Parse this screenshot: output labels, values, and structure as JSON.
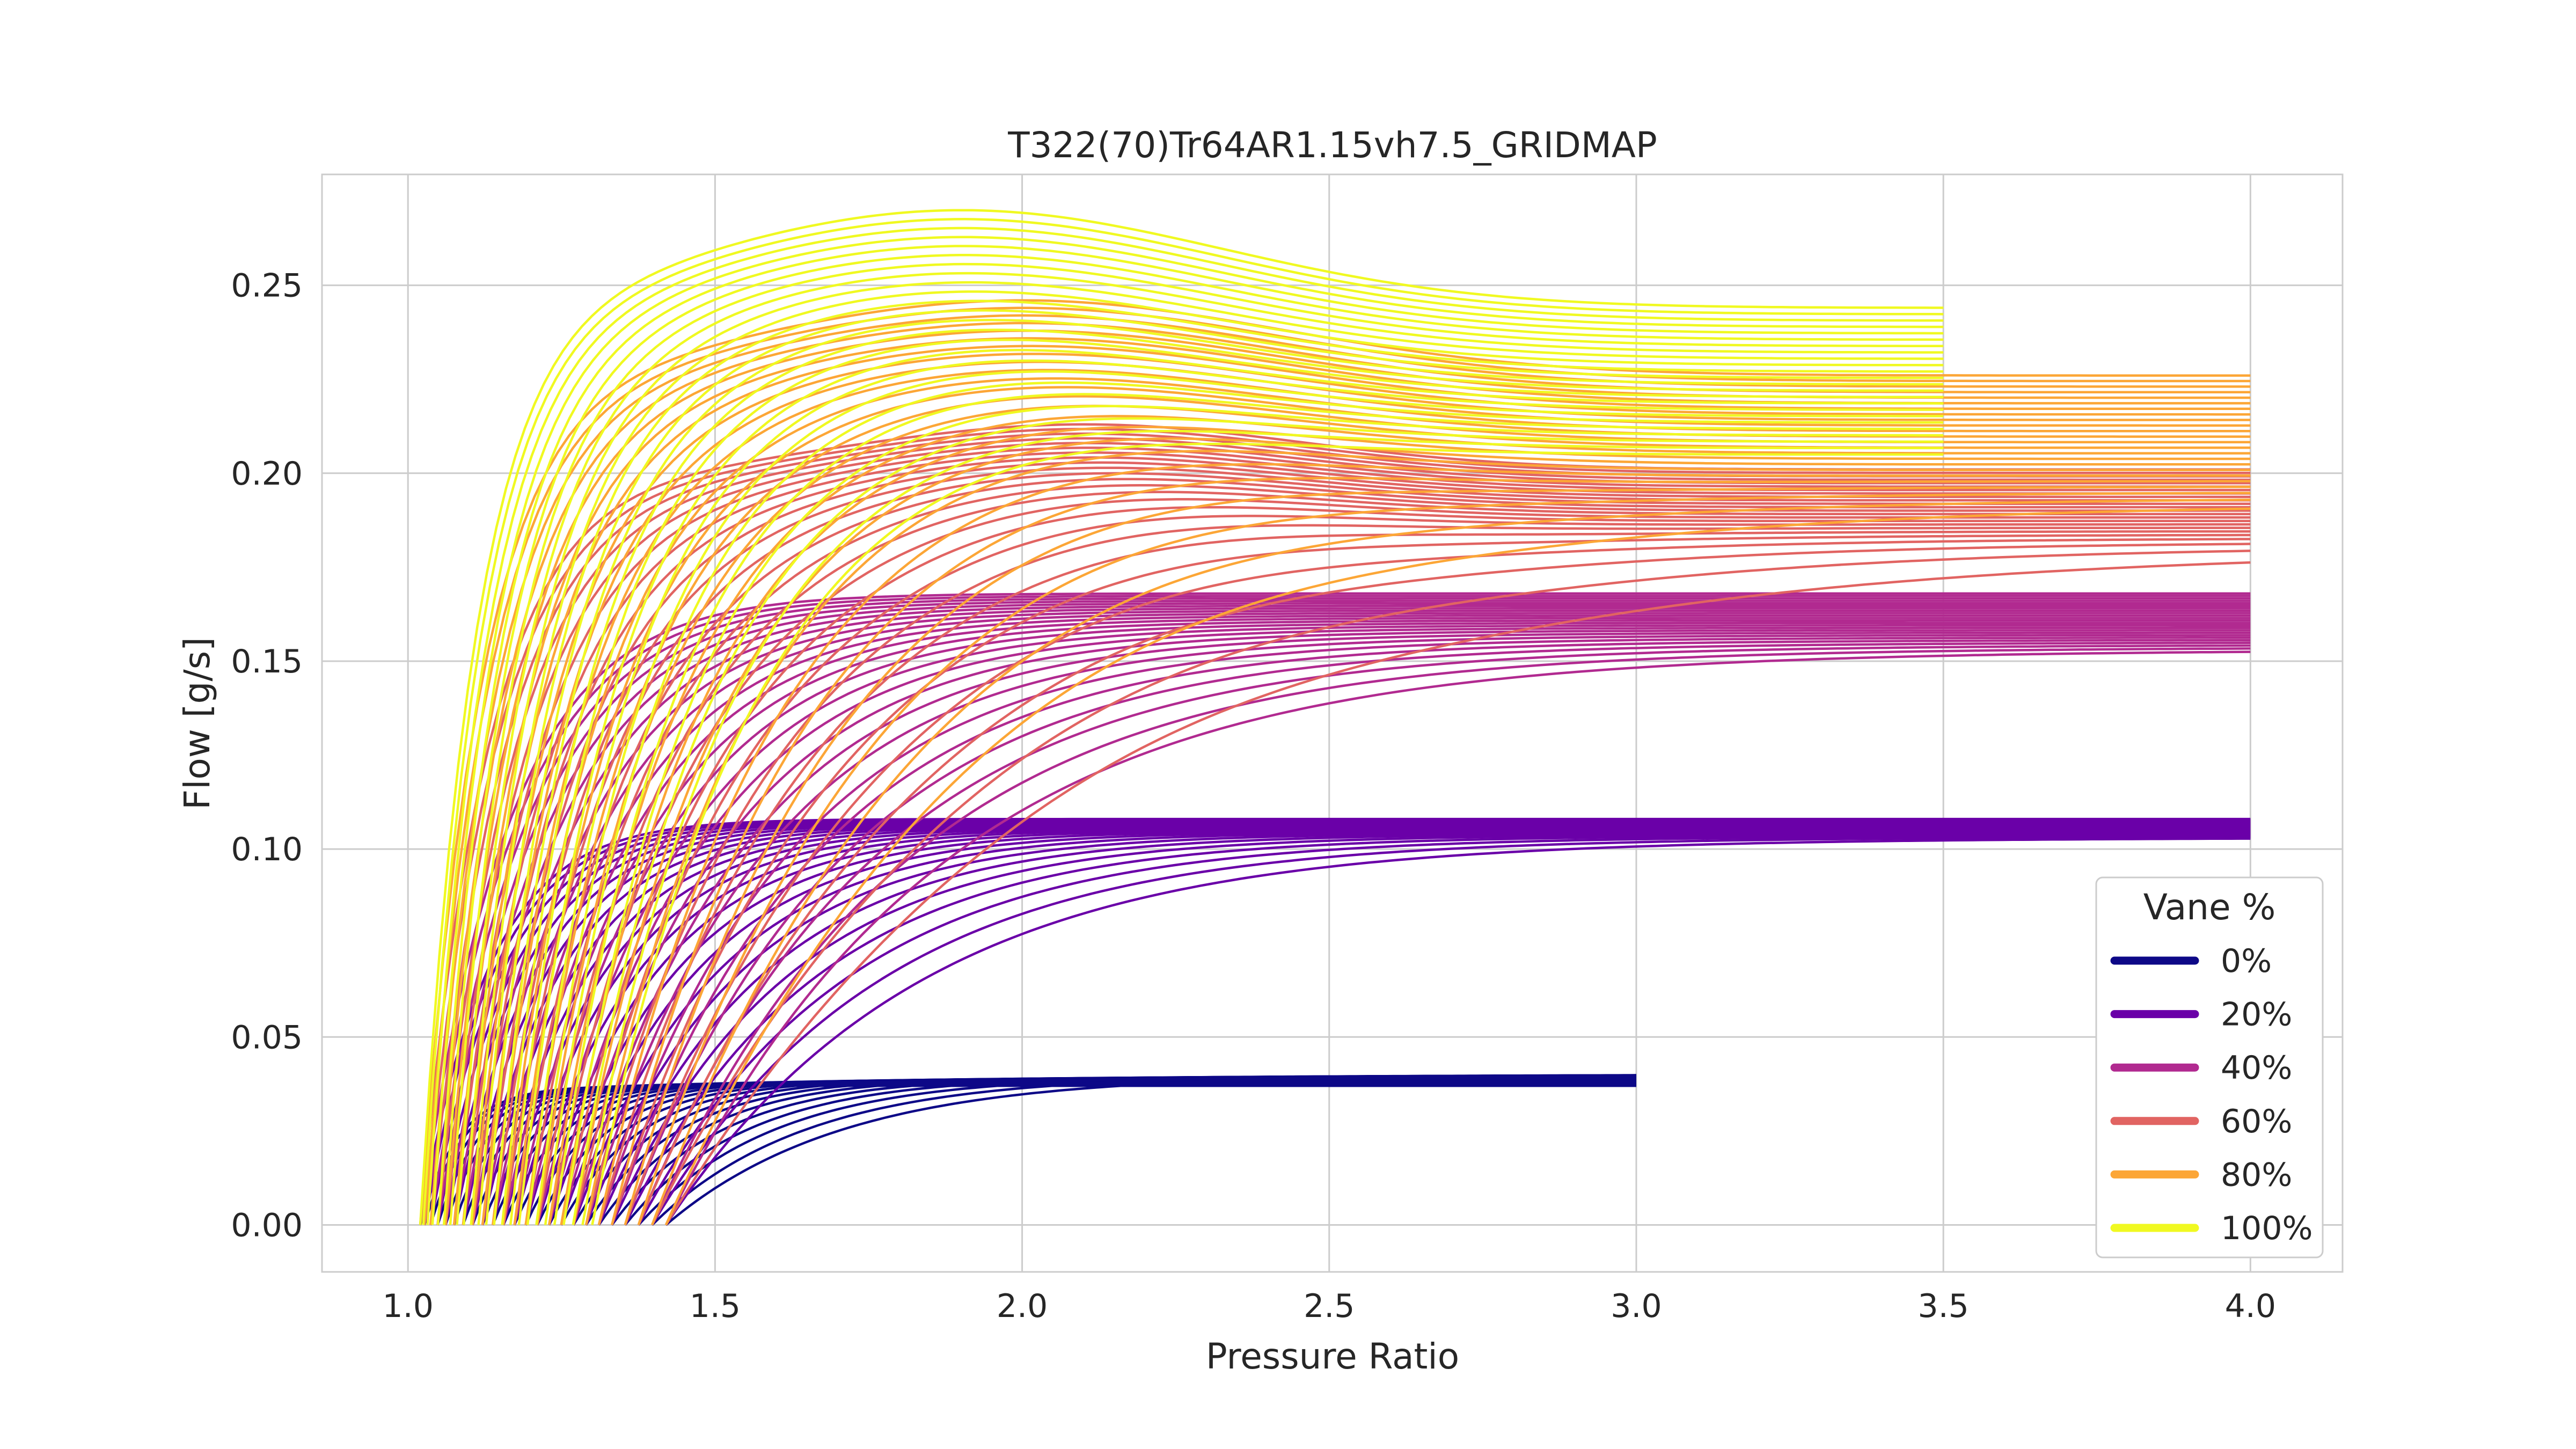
{
  "chart_data": {
    "type": "line",
    "title": "T322(70)Tr64AR1.15vh7.5_GRIDMAP",
    "xlabel": "Pressure Ratio",
    "ylabel": "Flow [g/s]",
    "xlim": [
      0.86,
      4.15
    ],
    "ylim": [
      -0.0125,
      0.2795
    ],
    "xticks": [
      1.0,
      1.5,
      2.0,
      2.5,
      3.0,
      3.5,
      4.0
    ],
    "xtick_labels": [
      "1.0",
      "1.5",
      "2.0",
      "2.5",
      "3.0",
      "3.5",
      "4.0"
    ],
    "yticks": [
      0.0,
      0.05,
      0.1,
      0.15,
      0.2,
      0.25
    ],
    "ytick_labels": [
      "0.00",
      "0.05",
      "0.10",
      "0.15",
      "0.20",
      "0.25"
    ],
    "grid": true,
    "legend": {
      "title": "Vane %",
      "placement": "lower-right",
      "entries": [
        {
          "label": "0%",
          "color": "#0d0887"
        },
        {
          "label": "20%",
          "color": "#6a00a8"
        },
        {
          "label": "40%",
          "color": "#b12a90"
        },
        {
          "label": "60%",
          "color": "#e16462"
        },
        {
          "label": "80%",
          "color": "#fca636"
        },
        {
          "label": "100%",
          "color": "#f0f921"
        }
      ]
    },
    "series": [
      {
        "name": "0%",
        "color": "#0d0887",
        "line_count": 24,
        "x0": [
          1.02,
          1.42
        ],
        "ymax": [
          0.037,
          0.04
        ],
        "x_end": 3.0,
        "k": [
          16,
          3.5
        ],
        "bend": 0.0,
        "bend_peak": 1.8,
        "bend_w": 0.7,
        "droop": [
          0.0,
          0.0
        ]
      },
      {
        "name": "20%",
        "color": "#6a00a8",
        "line_count": 24,
        "x0": [
          1.02,
          1.42
        ],
        "ymax": [
          0.108,
          0.103
        ],
        "x_end": 4.0,
        "k": [
          9,
          2.4
        ],
        "bend": 0.0,
        "bend_peak": 1.8,
        "bend_w": 0.7,
        "droop": [
          0.0,
          0.0
        ]
      },
      {
        "name": "40%",
        "color": "#b12a90",
        "line_count": 24,
        "x0": [
          1.02,
          1.42
        ],
        "ymax": [
          0.168,
          0.153
        ],
        "x_end": 4.0,
        "k": [
          7,
          2.2
        ],
        "bend": 0.0,
        "bend_peak": 1.8,
        "bend_w": 0.7,
        "droop": [
          0.0,
          0.0
        ]
      },
      {
        "name": "60%",
        "color": "#e16462",
        "line_count": 24,
        "x0": [
          1.02,
          1.42
        ],
        "ymax": [
          0.201,
          0.18
        ],
        "x_end": 4.0,
        "k": [
          9,
          1.5
        ],
        "bend": 0.012,
        "bend_peak": 2.1,
        "bend_w": 0.5,
        "droop": [
          0.0,
          0.0
        ]
      },
      {
        "name": "80%",
        "color": "#fca636",
        "line_count": 24,
        "x0": [
          1.02,
          1.42
        ],
        "ymax": [
          0.226,
          0.192
        ],
        "x_end": 4.0,
        "k": [
          10,
          1.9
        ],
        "bend": 0.02,
        "bend_peak": 2.0,
        "bend_w": 0.6,
        "droop": [
          0.0,
          0.0
        ]
      },
      {
        "name": "100%",
        "color": "#f0f921",
        "line_count": 24,
        "x0": [
          1.02,
          1.3
        ],
        "ymax": [
          0.244,
          0.205
        ],
        "x_end": 3.5,
        "k": [
          11,
          4
        ],
        "bend": 0.026,
        "bend_peak": 1.9,
        "bend_w": 0.6,
        "droop": [
          0.0,
          0.0
        ]
      }
    ]
  }
}
